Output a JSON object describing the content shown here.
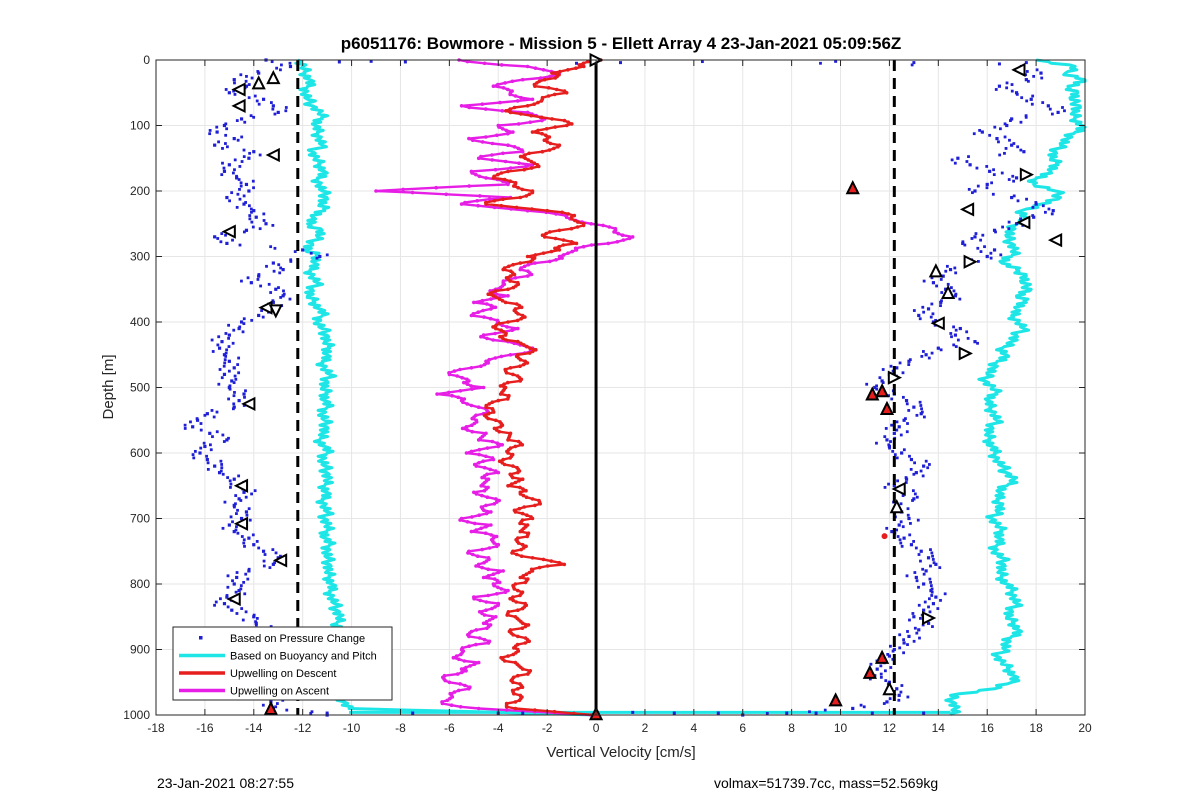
{
  "chart_data": {
    "type": "scatter",
    "title": "p6051176: Bowmore - Mission 5 - Ellett Array 4 23-Jan-2021 05:09:56Z",
    "xlabel": "Vertical Velocity [cm/s]",
    "ylabel": "Depth [m]",
    "xlim": [
      -18,
      20
    ],
    "ylim": [
      0,
      1000
    ],
    "y_reversed": true,
    "grid": true,
    "legend_position": "bottom-left",
    "x_ticks": [
      -18,
      -16,
      -14,
      -12,
      -10,
      -8,
      -6,
      -4,
      -2,
      0,
      2,
      4,
      6,
      8,
      10,
      12,
      14,
      16,
      18,
      20
    ],
    "y_ticks": [
      0,
      100,
      200,
      300,
      400,
      500,
      600,
      700,
      800,
      900,
      1000
    ],
    "reference_lines": [
      {
        "x": -12.2,
        "style": "dashed",
        "color": "#000000"
      },
      {
        "x": 0,
        "style": "solid",
        "color": "#000000"
      },
      {
        "x": 12.2,
        "style": "dashed",
        "color": "#000000"
      }
    ],
    "series": [
      {
        "name": "Based on Pressure Change",
        "color": "#1f1fd6",
        "marker": "point",
        "description_depth_step": 10,
        "descent_x": [
          -13.5,
          -12.5,
          -13.8,
          -14.8,
          -14.3,
          -15.0,
          -13.6,
          -13.2,
          -13.0,
          -14.5,
          -15.2,
          -15.5,
          -14.8,
          -15.6,
          -14.0,
          -14.2,
          -15.0,
          -15.2,
          -14.7,
          -14.3,
          -14.2,
          -15.1,
          -14.4,
          -14.0,
          -13.9,
          -13.5,
          -14.3,
          -15.6,
          -15.1,
          -12.0,
          -11.3,
          -13.2,
          -12.8,
          -13.8,
          -14.1,
          -13.1,
          -12.8,
          -13.2,
          -13.0,
          -13.8,
          -14.5,
          -14.6,
          -15.0,
          -15.3,
          -15.4,
          -15.2,
          -15.0,
          -14.8,
          -15.2,
          -14.9,
          -15.0,
          -14.4,
          -14.6,
          -14.8,
          -15.9,
          -16.3,
          -16.5,
          -15.8,
          -15.1,
          -16.0,
          -16.2,
          -15.9,
          -15.6,
          -15.4,
          -14.8,
          -14.5,
          -14.4,
          -14.6,
          -14.8,
          -14.3,
          -14.5,
          -15.0,
          -14.8,
          -14.2,
          -14.0,
          -13.6,
          -13.0,
          -13.2,
          -14.2,
          -14.7,
          -14.8,
          -14.6,
          -15.1,
          -15.2,
          -14.9,
          -14.0,
          -13.9,
          -13.4,
          -13.8,
          -14.4,
          -14.6,
          -14.3,
          -13.8,
          -13.7,
          -13.4,
          -13.1,
          -13.0,
          -12.8,
          -13.3,
          -13.2,
          -11.0
        ],
        "ascent_x": [
          0.0,
          17.4,
          18.2,
          17.6,
          16.5,
          17.2,
          17.8,
          18.5,
          18.9,
          17.0,
          16.8,
          15.8,
          16.4,
          17.0,
          17.5,
          14.8,
          15.3,
          16.1,
          17.2,
          16.0,
          15.5,
          17.0,
          18.0,
          18.7,
          17.9,
          17.2,
          16.3,
          15.5,
          15.0,
          16.3,
          16.0,
          15.2,
          14.5,
          14.2,
          13.8,
          14.3,
          14.7,
          14.1,
          13.6,
          13.2,
          13.8,
          14.9,
          14.7,
          15.5,
          14.0,
          13.5,
          12.8,
          12.3,
          12.0,
          11.7,
          11.4,
          12.2,
          12.7,
          13.0,
          13.3,
          12.6,
          12.4,
          12.2,
          11.9,
          12.0,
          12.5,
          12.9,
          13.4,
          13.1,
          12.7,
          12.2,
          12.6,
          13.0,
          12.3,
          12.5,
          12.8,
          12.4,
          12.1,
          12.6,
          12.9,
          13.3,
          13.6,
          13.9,
          13.5,
          13.1,
          13.4,
          13.7,
          13.9,
          13.8,
          13.4,
          13.0,
          13.6,
          13.2,
          12.8,
          12.6,
          12.2,
          12.0,
          11.8,
          11.5,
          11.4,
          12.0,
          12.3,
          12.4,
          11.9,
          10.5,
          6.0
        ]
      },
      {
        "name": "Based on Buoyancy and Pitch",
        "color": "#1ee6e6",
        "marker": "line",
        "descent_x": [
          -12.2,
          -12.0,
          -11.9,
          -11.7,
          -11.8,
          -11.9,
          -11.8,
          -11.6,
          -11.3,
          -11.2,
          -11.5,
          -11.4,
          -11.3,
          -11.2,
          -11.6,
          -11.5,
          -11.3,
          -11.1,
          -11.4,
          -11.3,
          -11.2,
          -11.0,
          -11.3,
          -11.1,
          -11.6,
          -11.8,
          -11.2,
          -11.4,
          -11.6,
          -11.9,
          -11.3,
          -11.5,
          -11.7,
          -11.6,
          -11.4,
          -11.6,
          -11.8,
          -11.5,
          -11.3,
          -11.2,
          -11.4,
          -11.2,
          -11.0,
          -11.1,
          -10.9,
          -11.0,
          -11.2,
          -11.1,
          -10.9,
          -11.0,
          -11.2,
          -11.0,
          -11.1,
          -11.0,
          -11.2,
          -11.1,
          -11.0,
          -11.2,
          -11.3,
          -11.1,
          -11.0,
          -11.2,
          -11.1,
          -11.0,
          -11.0,
          -11.1,
          -11.0,
          -11.2,
          -11.1,
          -11.0,
          -11.1,
          -11.0,
          -11.0,
          -11.1,
          -10.9,
          -11.0,
          -11.0,
          -10.9,
          -11.0,
          -10.9,
          -10.8,
          -10.9,
          -10.8,
          -10.7,
          -10.6,
          -10.5,
          -10.6,
          -10.4,
          -10.3,
          -10.2,
          -10.3,
          -10.4,
          -10.5,
          -10.6,
          -10.7,
          -10.6,
          -10.5,
          -10.4,
          -10.3,
          -10.1,
          0.0
        ],
        "ascent_x": [
          18.0,
          19.6,
          19.2,
          20.0,
          19.3,
          19.7,
          19.4,
          19.8,
          19.5,
          19.6,
          19.9,
          19.6,
          19.3,
          19.0,
          18.8,
          18.6,
          18.9,
          18.6,
          18.0,
          17.9,
          18.8,
          19.0,
          18.2,
          17.4,
          17.6,
          17.2,
          17.0,
          16.8,
          17.0,
          17.1,
          17.0,
          16.6,
          17.2,
          17.6,
          17.4,
          17.8,
          17.2,
          17.6,
          17.2,
          17.0,
          17.3,
          17.5,
          17.2,
          17.0,
          16.6,
          16.8,
          16.4,
          16.3,
          16.0,
          15.9,
          16.2,
          16.4,
          16.0,
          16.1,
          16.3,
          16.4,
          16.2,
          16.0,
          16.1,
          16.2,
          16.3,
          16.4,
          16.6,
          16.8,
          17.1,
          16.8,
          16.5,
          16.4,
          16.6,
          16.4,
          16.2,
          16.4,
          16.6,
          16.5,
          16.4,
          16.3,
          16.6,
          16.7,
          16.5,
          16.6,
          16.8,
          17.0,
          17.1,
          17.2,
          17.0,
          16.8,
          17.1,
          17.3,
          17.0,
          16.8,
          16.7,
          16.4,
          16.6,
          16.9,
          17.1,
          17.0,
          16.3,
          14.5,
          14.6,
          14.7,
          14.5
        ]
      },
      {
        "name": "Upwelling on Descent",
        "color": "#e61e1e",
        "marker": "line-dot",
        "x": [
          0.2,
          -0.5,
          -1.8,
          -2.1,
          -2.5,
          -1.2,
          -2.2,
          -2.8,
          -3.5,
          -1.8,
          -1.2,
          -2.6,
          -2.0,
          -1.5,
          -2.2,
          -2.9,
          -2.4,
          -3.6,
          -4.2,
          -3.3,
          -2.6,
          -3.1,
          -4.5,
          -2.0,
          -1.0,
          -0.5,
          -1.5,
          -2.1,
          -0.8,
          -1.5,
          -2.8,
          -3.1,
          -3.8,
          -3.5,
          -3.2,
          -3.6,
          -4.2,
          -3.7,
          -3.3,
          -3.0,
          -3.6,
          -4.1,
          -3.7,
          -3.2,
          -2.7,
          -3.2,
          -2.9,
          -3.5,
          -3.4,
          -3.1,
          -3.7,
          -3.9,
          -4.0,
          -4.5,
          -4.4,
          -4.1,
          -3.9,
          -3.5,
          -3.6,
          -3.3,
          -3.6,
          -3.8,
          -3.4,
          -3.2,
          -3.0,
          -3.6,
          -3.1,
          -2.6,
          -2.5,
          -3.3,
          -2.6,
          -2.8,
          -3.1,
          -3.2,
          -3.0,
          -3.4,
          -2.6,
          -1.3,
          -2.6,
          -3.1,
          -3.3,
          -3.2,
          -3.4,
          -2.9,
          -3.2,
          -3.3,
          -3.0,
          -3.5,
          -3.2,
          -2.9,
          -3.2,
          -3.6,
          -3.3,
          -3.0,
          -3.2,
          -3.4,
          -3.2,
          -3.1,
          -3.3,
          -3.3,
          -0.1
        ],
        "y": [
          0,
          10,
          20,
          30,
          40,
          50,
          60,
          70,
          80,
          90,
          100,
          110,
          120,
          130,
          140,
          150,
          160,
          170,
          180,
          190,
          200,
          210,
          220,
          230,
          240,
          250,
          260,
          270,
          280,
          290,
          300,
          310,
          320,
          330,
          340,
          350,
          360,
          370,
          380,
          390,
          400,
          410,
          420,
          430,
          440,
          450,
          460,
          470,
          480,
          490,
          500,
          510,
          520,
          530,
          540,
          550,
          560,
          570,
          580,
          590,
          600,
          610,
          620,
          630,
          640,
          650,
          660,
          670,
          680,
          690,
          700,
          710,
          720,
          730,
          740,
          750,
          760,
          770,
          780,
          790,
          800,
          810,
          820,
          830,
          840,
          850,
          860,
          870,
          880,
          890,
          900,
          910,
          920,
          930,
          940,
          950,
          960,
          970,
          980,
          990,
          1000
        ]
      },
      {
        "name": "Upwelling on Ascent",
        "color": "#e61ee6",
        "marker": "line-dot",
        "x": [
          -5.6,
          -2.8,
          -1.5,
          -3.0,
          -4.2,
          -3.5,
          -2.6,
          -5.5,
          -2.8,
          -2.1,
          -4.0,
          -3.4,
          -5.2,
          -3.6,
          -3.0,
          -4.8,
          -2.6,
          -5.1,
          -4.5,
          -3.6,
          -9.0,
          -3.5,
          -5.5,
          -2.8,
          -1.2,
          -0.2,
          0.8,
          1.5,
          0.5,
          -0.8,
          -1.5,
          -2.5,
          -3.1,
          -2.8,
          -3.8,
          -4.1,
          -3.6,
          -5.0,
          -4.3,
          -5.1,
          -4.0,
          -3.2,
          -4.6,
          -3.6,
          -2.6,
          -3.5,
          -4.5,
          -5.1,
          -6.0,
          -5.2,
          -4.6,
          -6.5,
          -5.5,
          -4.8,
          -4.6,
          -4.9,
          -5.3,
          -4.5,
          -4.8,
          -4.0,
          -5.3,
          -4.2,
          -4.9,
          -4.0,
          -4.4,
          -4.7,
          -5.0,
          -4.1,
          -4.5,
          -4.3,
          -5.5,
          -4.3,
          -5.1,
          -4.2,
          -4.0,
          -5.2,
          -4.4,
          -4.8,
          -3.8,
          -4.6,
          -4.2,
          -3.6,
          -5.0,
          -4.0,
          -4.5,
          -4.1,
          -4.6,
          -4.9,
          -5.2,
          -4.4,
          -5.5,
          -5.7,
          -4.8,
          -5.5,
          -6.2,
          -6.0,
          -5.2,
          -5.9,
          -6.3,
          -4.8,
          -0.2
        ],
        "y": [
          0,
          10,
          20,
          30,
          40,
          50,
          60,
          70,
          80,
          90,
          100,
          110,
          120,
          130,
          140,
          150,
          160,
          170,
          180,
          190,
          200,
          210,
          220,
          230,
          240,
          250,
          260,
          270,
          280,
          290,
          300,
          310,
          320,
          330,
          340,
          350,
          360,
          370,
          380,
          390,
          400,
          410,
          420,
          430,
          440,
          450,
          460,
          470,
          480,
          490,
          500,
          510,
          520,
          530,
          540,
          550,
          560,
          570,
          580,
          590,
          600,
          610,
          620,
          630,
          640,
          650,
          660,
          670,
          680,
          690,
          700,
          710,
          720,
          730,
          740,
          750,
          760,
          770,
          780,
          790,
          800,
          810,
          820,
          830,
          840,
          850,
          860,
          870,
          880,
          890,
          900,
          910,
          920,
          930,
          940,
          950,
          960,
          970,
          980,
          990,
          1000
        ]
      }
    ],
    "markers": {
      "open_triangles_left": [
        {
          "x": -14.6,
          "y": 45
        },
        {
          "x": -14.6,
          "y": 70
        },
        {
          "x": -13.2,
          "y": 145
        },
        {
          "x": -15.0,
          "y": 262
        },
        {
          "x": -13.5,
          "y": 378
        },
        {
          "x": -14.2,
          "y": 525
        },
        {
          "x": -14.5,
          "y": 650
        },
        {
          "x": -14.5,
          "y": 708
        },
        {
          "x": -12.9,
          "y": 764
        },
        {
          "x": -14.8,
          "y": 823
        },
        {
          "x": -13.8,
          "y": 880
        },
        {
          "x": 17.3,
          "y": 15
        },
        {
          "x": 15.2,
          "y": 228
        },
        {
          "x": 17.5,
          "y": 248
        },
        {
          "x": 18.8,
          "y": 275
        },
        {
          "x": 14.0,
          "y": 402
        },
        {
          "x": 12.4,
          "y": 655
        }
      ],
      "open_triangles_right": [
        {
          "x": 0.0,
          "y": 0
        },
        {
          "x": 17.6,
          "y": 175
        },
        {
          "x": 15.3,
          "y": 308
        },
        {
          "x": 15.1,
          "y": 448
        },
        {
          "x": 12.2,
          "y": 485
        },
        {
          "x": 13.6,
          "y": 852
        }
      ],
      "open_triangles_up": [
        {
          "x": -13.2,
          "y": 27
        },
        {
          "x": -13.8,
          "y": 35
        },
        {
          "x": 13.9,
          "y": 322
        },
        {
          "x": 14.4,
          "y": 355
        },
        {
          "x": 12.3,
          "y": 682
        },
        {
          "x": 12.0,
          "y": 960
        }
      ],
      "open_triangles_down": [
        {
          "x": -13.1,
          "y": 383
        }
      ],
      "red_triangles": [
        {
          "x": 10.5,
          "y": 195
        },
        {
          "x": 11.3,
          "y": 510
        },
        {
          "x": 11.7,
          "y": 505
        },
        {
          "x": 11.9,
          "y": 532
        },
        {
          "x": 11.7,
          "y": 912
        },
        {
          "x": 11.2,
          "y": 935
        },
        {
          "x": 9.8,
          "y": 977
        },
        {
          "x": -13.3,
          "y": 990
        },
        {
          "x": 0.0,
          "y": 998
        }
      ],
      "red_points": [
        {
          "x": 11.8,
          "y": 727
        }
      ]
    }
  },
  "footer": {
    "left": "23-Jan-2021 08:27:55",
    "right": "volmax=51739.7cc, mass=52.569kg"
  }
}
